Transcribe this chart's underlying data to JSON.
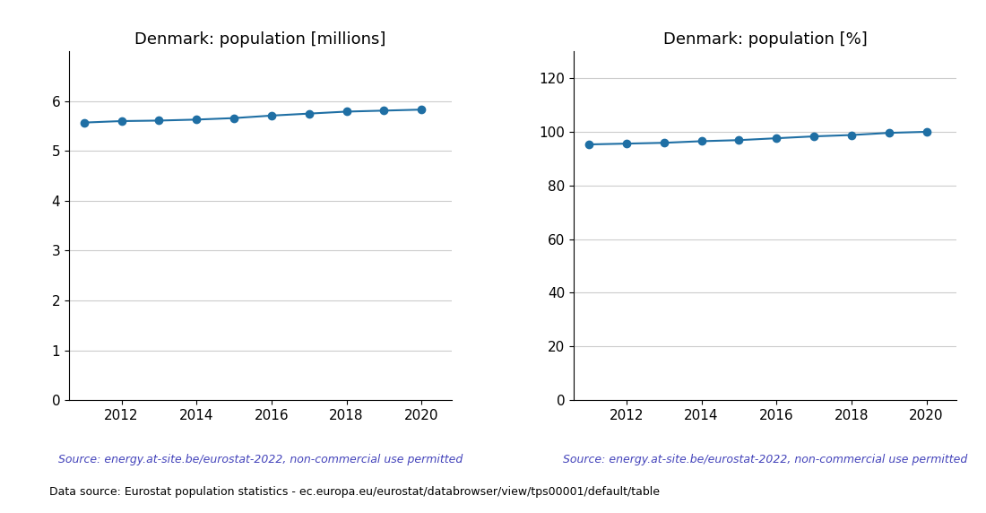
{
  "years": [
    2011,
    2012,
    2013,
    2014,
    2015,
    2016,
    2017,
    2018,
    2019,
    2020
  ],
  "population_millions": [
    5.57,
    5.6,
    5.61,
    5.63,
    5.66,
    5.71,
    5.75,
    5.79,
    5.81,
    5.83
  ],
  "population_percent": [
    95.3,
    95.6,
    95.9,
    96.5,
    96.9,
    97.6,
    98.3,
    98.8,
    99.6,
    100.0
  ],
  "title_millions": "Denmark: population [millions]",
  "title_percent": "Denmark: population [%]",
  "line_color": "#1f6fa4",
  "marker": "o",
  "markersize": 6,
  "linewidth": 1.5,
  "source_text": "Source: energy.at-site.be/eurostat-2022, non-commercial use permitted",
  "source_color": "#4444bb",
  "footer_text": "Data source: Eurostat population statistics - ec.europa.eu/eurostat/databrowser/view/tps00001/default/table",
  "footer_color": "#000000",
  "ylim_millions": [
    0,
    7
  ],
  "ylim_percent": [
    0,
    130
  ],
  "yticks_millions": [
    0,
    1,
    2,
    3,
    4,
    5,
    6
  ],
  "yticks_percent": [
    0,
    20,
    40,
    60,
    80,
    100,
    120
  ],
  "xticks_display": [
    2012,
    2014,
    2016,
    2018,
    2020
  ],
  "grid_color": "#cccccc",
  "grid_linewidth": 0.8,
  "xlim": [
    2010.6,
    2020.8
  ]
}
